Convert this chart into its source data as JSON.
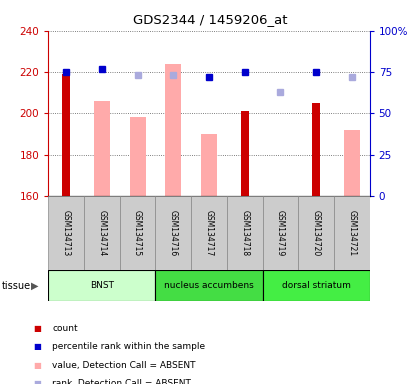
{
  "title": "GDS2344 / 1459206_at",
  "samples": [
    "GSM134713",
    "GSM134714",
    "GSM134715",
    "GSM134716",
    "GSM134717",
    "GSM134718",
    "GSM134719",
    "GSM134720",
    "GSM134721"
  ],
  "count_values": [
    219,
    null,
    null,
    null,
    null,
    201,
    null,
    205,
    null
  ],
  "count_color": "#cc0000",
  "absent_value_values": [
    null,
    206,
    198,
    224,
    190,
    null,
    null,
    null,
    192
  ],
  "absent_value_color": "#ffaaaa",
  "percentile_rank_values": [
    75,
    77,
    null,
    null,
    72,
    75,
    null,
    75,
    null
  ],
  "percentile_rank_color": "#0000cc",
  "absent_rank_values": [
    null,
    null,
    73,
    73,
    null,
    null,
    63,
    null,
    72
  ],
  "absent_rank_color": "#aaaadd",
  "ylim_left": [
    160,
    240
  ],
  "ylim_right": [
    0,
    100
  ],
  "yticks_left": [
    160,
    180,
    200,
    220,
    240
  ],
  "yticks_right": [
    0,
    25,
    50,
    75,
    100
  ],
  "tissue_groups": [
    {
      "label": "BNST",
      "start": 0,
      "end": 3,
      "color": "#ccffcc"
    },
    {
      "label": "nucleus accumbens",
      "start": 3,
      "end": 6,
      "color": "#44dd44"
    },
    {
      "label": "dorsal striatum",
      "start": 6,
      "end": 9,
      "color": "#44ee44"
    }
  ],
  "legend_items": [
    {
      "label": "count",
      "color": "#cc0000"
    },
    {
      "label": "percentile rank within the sample",
      "color": "#0000cc"
    },
    {
      "label": "value, Detection Call = ABSENT",
      "color": "#ffaaaa"
    },
    {
      "label": "rank, Detection Call = ABSENT",
      "color": "#aaaadd"
    }
  ],
  "background_color": "#ffffff",
  "grid_color": "#555555",
  "sample_box_color": "#cccccc"
}
